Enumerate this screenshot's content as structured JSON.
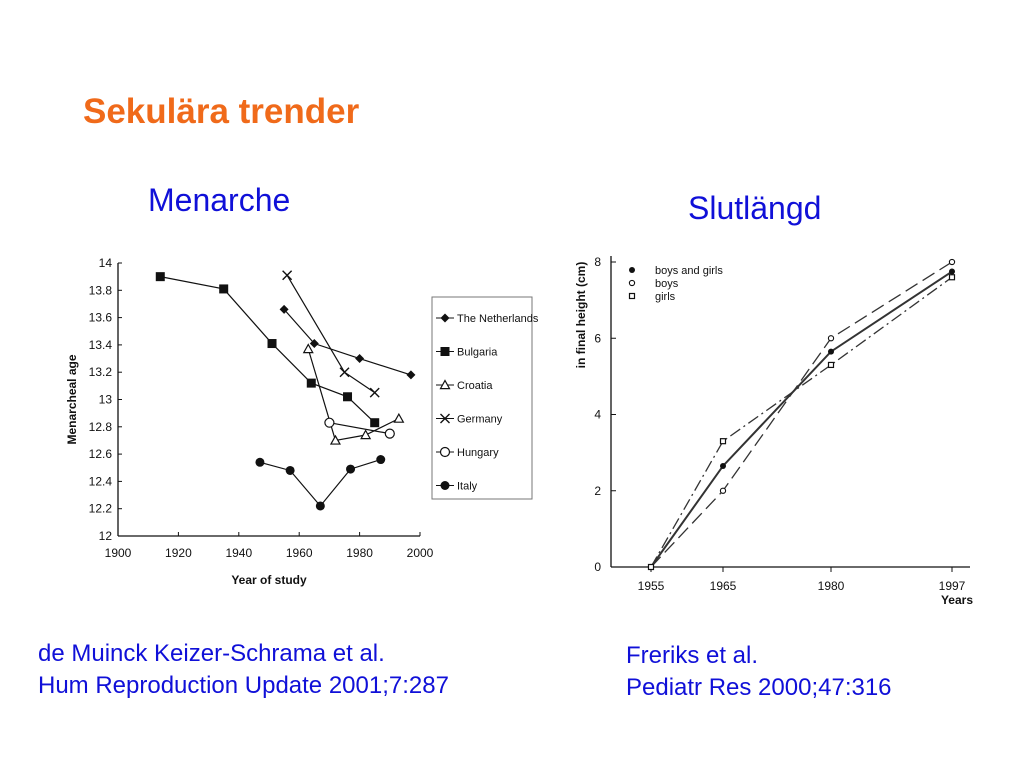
{
  "slide": {
    "title": "Sekulära trender",
    "left_heading": "Menarche",
    "right_heading": "Slutlängd",
    "left_citation_line1": "de Muinck Keizer-Schrama et al.",
    "left_citation_line2": "Hum Reproduction Update 2001;7:287",
    "right_citation_line1": "Freriks et al.",
    "right_citation_line2": "Pediatr Res 2000;47:316"
  },
  "colors": {
    "title": "#f06a1a",
    "heading": "#1010d8",
    "ink": "#111111"
  },
  "chart_data": [
    {
      "type": "line",
      "xlabel": "Year of study",
      "ylabel": "Menarcheal age",
      "xlim": [
        1900,
        2000
      ],
      "ylim": [
        12,
        14
      ],
      "x_ticks": [
        "1900",
        "1920",
        "1940",
        "1960",
        "1980",
        "2000"
      ],
      "y_ticks": [
        "12",
        "12.2",
        "12.4",
        "12.6",
        "12.8",
        "13",
        "13.2",
        "13.4",
        "13.6",
        "13.8",
        "14"
      ],
      "legend_position": "right",
      "series": [
        {
          "name": "The Netherlands",
          "marker": "diamond",
          "x": [
            1955,
            1965,
            1980,
            1997
          ],
          "y": [
            13.66,
            13.41,
            13.3,
            13.18
          ]
        },
        {
          "name": "Bulgaria",
          "marker": "square",
          "x": [
            1914,
            1935,
            1951,
            1964,
            1976,
            1985
          ],
          "y": [
            13.9,
            13.81,
            13.41,
            13.12,
            13.02,
            12.83
          ]
        },
        {
          "name": "Croatia",
          "marker": "triangle",
          "x": [
            1963,
            1972,
            1982,
            1993
          ],
          "y": [
            13.37,
            12.7,
            12.74,
            12.86
          ]
        },
        {
          "name": "Germany",
          "marker": "x",
          "x": [
            1956,
            1975,
            1985
          ],
          "y": [
            13.91,
            13.2,
            13.05
          ]
        },
        {
          "name": "Hungary",
          "marker": "circle-open",
          "x": [
            1970,
            1990
          ],
          "y": [
            12.83,
            12.75
          ]
        },
        {
          "name": "Italy",
          "marker": "circle-filled",
          "x": [
            1947,
            1957,
            1967,
            1977,
            1987
          ],
          "y": [
            12.54,
            12.48,
            12.22,
            12.49,
            12.56
          ]
        }
      ]
    },
    {
      "type": "line",
      "xlabel": "Years",
      "ylabel": "in final height (cm)",
      "xlim": [
        1955,
        1997
      ],
      "ylim": [
        0,
        8
      ],
      "x_ticks": [
        "1955",
        "1965",
        "1980",
        "1997"
      ],
      "y_ticks": [
        "0",
        "2",
        "4",
        "6",
        "8"
      ],
      "legend_position": "top-left",
      "series": [
        {
          "name": "boys and girls",
          "marker": "dot",
          "style": "solid",
          "x": [
            1955,
            1965,
            1980,
            1997
          ],
          "y": [
            0,
            2.65,
            5.65,
            7.75
          ]
        },
        {
          "name": "boys",
          "marker": "circle-open",
          "style": "long-dash",
          "x": [
            1955,
            1965,
            1980,
            1997
          ],
          "y": [
            0,
            2.0,
            6.0,
            8.0
          ]
        },
        {
          "name": "girls",
          "marker": "square-open",
          "style": "dash-dot",
          "x": [
            1955,
            1965,
            1980,
            1997
          ],
          "y": [
            0,
            3.3,
            5.3,
            7.6
          ]
        }
      ]
    }
  ]
}
